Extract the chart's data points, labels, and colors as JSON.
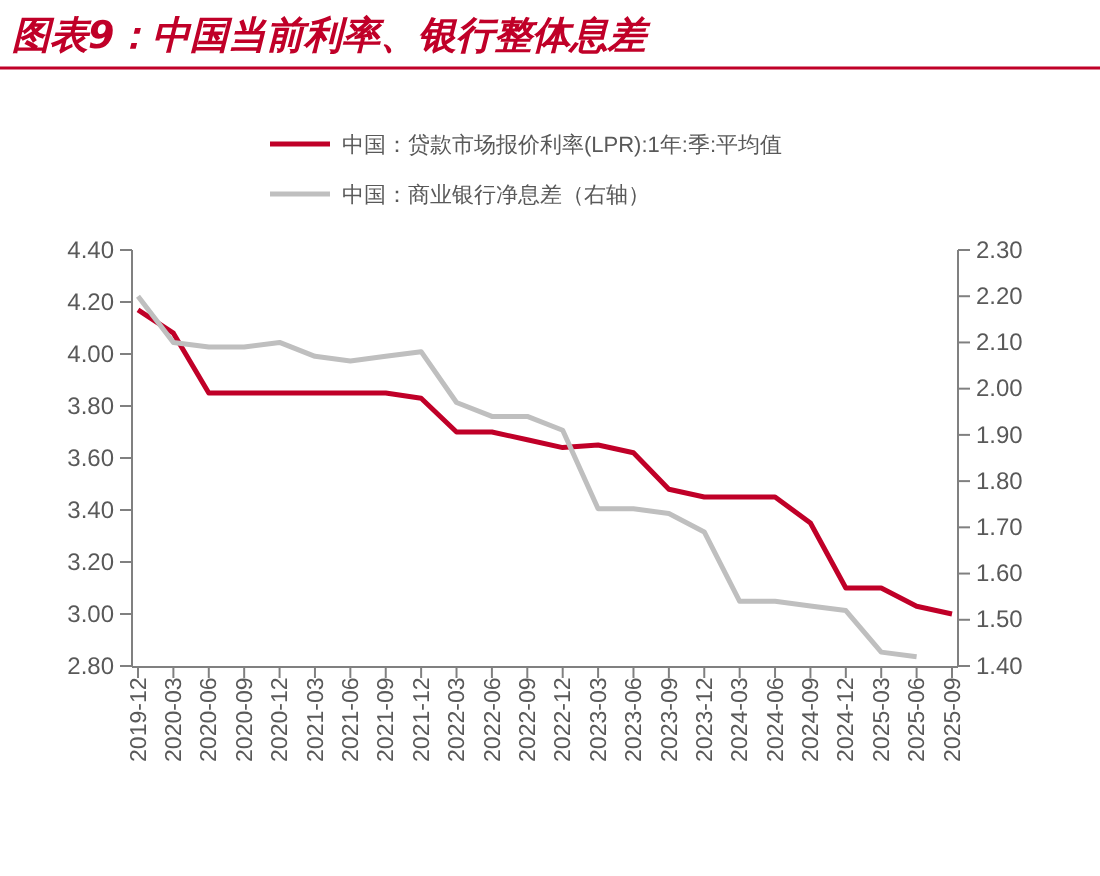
{
  "chart_data": {
    "type": "line",
    "title": "图表9：中国当前利率、银行整体息差",
    "categories": [
      "2019-12",
      "2020-03",
      "2020-06",
      "2020-09",
      "2020-12",
      "2021-03",
      "2021-06",
      "2021-09",
      "2021-12",
      "2022-03",
      "2022-06",
      "2022-09",
      "2022-12",
      "2023-03",
      "2023-06",
      "2023-09",
      "2023-12",
      "2024-03",
      "2024-06",
      "2024-09",
      "2024-12",
      "2025-03",
      "2025-06",
      "2025-09"
    ],
    "series": [
      {
        "name": "中国：贷款市场报价利率(LPR):1年:季:平均值",
        "color": "#c00028",
        "values": [
          4.17,
          4.08,
          3.85,
          3.85,
          3.85,
          3.85,
          3.85,
          3.85,
          3.83,
          3.7,
          3.7,
          3.67,
          3.64,
          3.65,
          3.62,
          3.48,
          3.45,
          3.45,
          3.45,
          3.35,
          3.1,
          3.1,
          3.03,
          3.0
        ]
      },
      {
        "name": "中国：商业银行净息差（右轴）",
        "color": "#bfbfbf",
        "axis": "y2",
        "values": [
          2.2,
          2.1,
          2.09,
          2.09,
          2.1,
          2.07,
          2.06,
          2.07,
          2.08,
          1.97,
          1.94,
          1.94,
          1.91,
          1.74,
          1.74,
          1.73,
          1.69,
          1.54,
          1.54,
          1.53,
          1.52,
          1.43,
          1.42,
          null
        ]
      }
    ],
    "ylim": [
      2.8,
      4.4
    ],
    "yticks": [
      {
        "value": 2.8,
        "label": "2.80"
      },
      {
        "value": 3.0,
        "label": "3.00"
      },
      {
        "value": 3.2,
        "label": "3.20"
      },
      {
        "value": 3.4,
        "label": "3.40"
      },
      {
        "value": 3.6,
        "label": "3.60"
      },
      {
        "value": 3.8,
        "label": "3.80"
      },
      {
        "value": 4.0,
        "label": "4.00"
      },
      {
        "value": 4.2,
        "label": "4.20"
      },
      {
        "value": 4.4,
        "label": "4.40"
      }
    ],
    "y2lim": [
      1.4,
      2.3
    ],
    "y2ticks": [
      {
        "value": 1.4,
        "label": "1.40"
      },
      {
        "value": 1.5,
        "label": "1.50"
      },
      {
        "value": 1.6,
        "label": "1.60"
      },
      {
        "value": 1.7,
        "label": "1.70"
      },
      {
        "value": 1.8,
        "label": "1.80"
      },
      {
        "value": 1.9,
        "label": "1.90"
      },
      {
        "value": 2.0,
        "label": "2.00"
      },
      {
        "value": 2.1,
        "label": "2.10"
      },
      {
        "value": 2.2,
        "label": "2.20"
      },
      {
        "value": 2.3,
        "label": "2.30"
      }
    ],
    "legend": "top",
    "grid": false,
    "marker": "none",
    "line_style": "solid"
  }
}
